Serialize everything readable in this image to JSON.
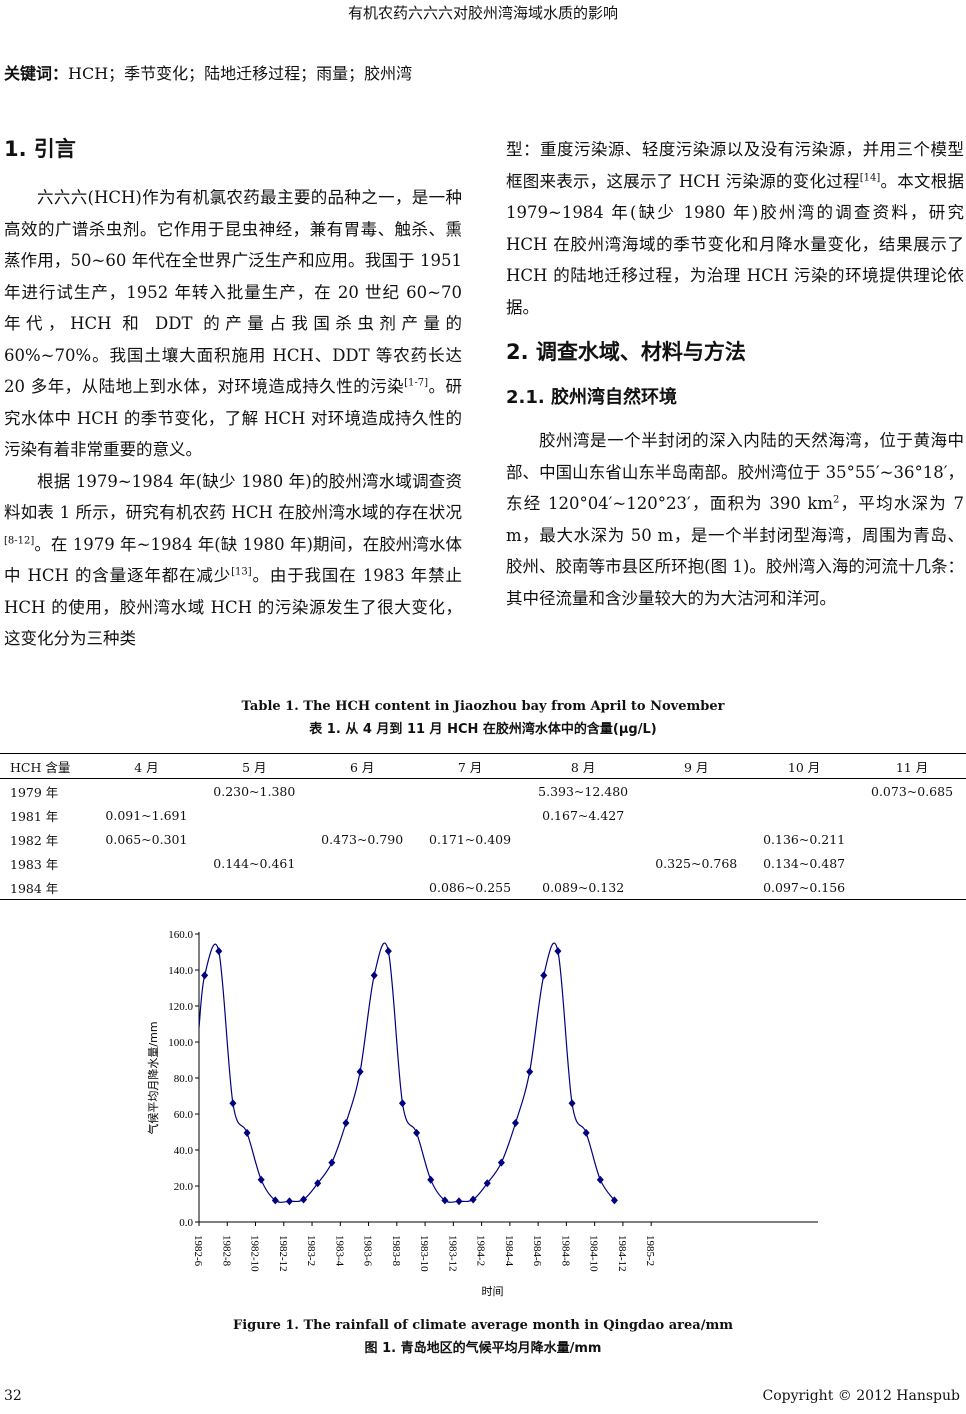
{
  "running_header": "有机农药六六六对胶州湾海域水质的影响",
  "keywords": {
    "label": "关键词：",
    "text": "HCH；季节变化；陆地迁移过程；雨量；胶州湾"
  },
  "sec1": {
    "title": "1.  引言",
    "p1": [
      "六六六(HCH)作为有机氯农药最主要的品种之一，是一种高效的广谱杀虫剂。它作用于昆虫神经，兼有胃毒、触杀、熏蒸作用，50~60 年代在全世界广泛生产和应用。我国于 1951 年进行试生产，1952 年转入批量生产，在 20 世纪 60~70 年代，HCH 和 DDT 的产量占我国杀虫剂产量的 60%~70%。我国土壤大面积施用 HCH、DDT 等农药长达 20 多年，从陆地上到水体，对环境造成持久性的污染",
      "[1-7]",
      "。研究水体中 HCH 的季节变化，了解 HCH 对环境造成持久性的污染有着非常重要的意义。"
    ],
    "p2": [
      "根据 1979~1984 年(缺少 1980 年)的胶州湾水域调查资料如表 1 所示，研究有机农药 HCH 在胶州湾水域的存在状况",
      "[8-12]",
      "。在 1979 年~1984 年(缺 1980 年)期间，在胶州湾水体中 HCH 的含量逐年都在减少",
      "[13]",
      "。由于我国在 1983 年禁止 HCH 的使用，胶州湾水域 HCH 的污染源发生了很大变化，这变化分为三种类"
    ],
    "p3": [
      "型：重度污染源、轻度污染源以及没有污染源，并用三个模型框图来表示，这展示了 HCH 污染源的变化过程",
      "[14]",
      "。本文根据 1979~1984 年(缺少 1980 年)胶州湾的调查资料，研究 HCH 在胶州湾海域的季节变化和月降水量变化，结果展示了 HCH 的陆地迁移过程，为治理 HCH 污染的环境提供理论依据。"
    ]
  },
  "sec2": {
    "title": "2.  调查水域、材料与方法",
    "sub_title": "2.1.  胶州湾自然环境",
    "p1": [
      "胶州湾是一个半封闭的深入内陆的天然海湾，位于黄海中部、中国山东省山东半岛南部。胶州湾位于 35°55′~36°18′，东经 120°04′~120°23′，面积为 390 km",
      "2",
      "，平均水深为 7 m，最大水深为 50 m，是一个半封闭型海湾，周围为青岛、胶州、胶南等市县区所环抱(图 1)。胶州湾入海的河流十几条：其中径流量和含沙量较大的为大沽河和洋河。"
    ]
  },
  "table1": {
    "caption_en": "Table 1. The HCH content in Jiaozhou bay from April to November",
    "caption_zh": "表 1.  从 4 月到 11 月 HCH 在胶州湾水体中的含量(μg/L)",
    "headers": [
      "HCH 含量",
      "4 月",
      "5 月",
      "6 月",
      "7 月",
      "8 月",
      "9 月",
      "10 月",
      "11 月"
    ],
    "rows": [
      [
        "1979 年",
        "",
        "0.230~1.380",
        "",
        "",
        "5.393~12.480",
        "",
        "",
        "0.073~0.685"
      ],
      [
        "1981 年",
        "0.091~1.691",
        "",
        "",
        "",
        "0.167~4.427",
        "",
        "",
        ""
      ],
      [
        "1982 年",
        "0.065~0.301",
        "",
        "0.473~0.790",
        "0.171~0.409",
        "",
        "",
        "0.136~0.211",
        ""
      ],
      [
        "1983 年",
        "",
        "0.144~0.461",
        "",
        "",
        "",
        "0.325~0.768",
        "0.134~0.487",
        ""
      ],
      [
        "1984 年",
        "",
        "",
        "",
        "0.086~0.255",
        "0.089~0.132",
        "",
        "0.097~0.156",
        ""
      ]
    ]
  },
  "chart_data": {
    "type": "line",
    "xlabel": "时间",
    "ylabel": "气候平均月降水量/mm",
    "ylim": [
      0,
      160
    ],
    "yticks": [
      "0.0",
      "20.0",
      "40.0",
      "60.0",
      "80.0",
      "100.0",
      "120.0",
      "140.0",
      "160.0"
    ],
    "xticks": [
      "1982-6",
      "1982-8",
      "1982-10",
      "1982-12",
      "1983-2",
      "1983-4",
      "1983-6",
      "1983-8",
      "1983-10",
      "1983-12",
      "1984-2",
      "1984-4",
      "1984-6",
      "1984-8",
      "1984-10",
      "1984-12",
      "1985-2"
    ],
    "color": "#000080",
    "marker": "diamond",
    "smooth": true,
    "x": [
      "1982-7",
      "1982-8",
      "1982-9",
      "1982-10",
      "1982-11",
      "1982-12",
      "1983-1",
      "1983-2",
      "1983-3",
      "1983-4",
      "1983-5",
      "1983-6",
      "1983-7",
      "1983-8",
      "1983-9",
      "1983-10",
      "1983-11",
      "1983-12",
      "1984-1",
      "1984-2",
      "1984-3",
      "1984-4",
      "1984-5",
      "1984-6",
      "1984-7",
      "1984-8",
      "1984-9",
      "1984-10",
      "1984-11",
      "1984-12"
    ],
    "values": [
      137,
      150.5,
      66,
      49.5,
      23.5,
      12,
      11.5,
      12.5,
      21.5,
      33,
      55,
      83.5,
      137,
      150.5,
      66,
      49.5,
      23.5,
      12,
      11.5,
      12.5,
      21.5,
      33,
      55,
      83.5,
      137,
      150.5,
      66,
      49.5,
      23.5,
      12
    ]
  },
  "figure1": {
    "caption_en": "Figure 1. The rainfall of climate average month in Qingdao area/mm",
    "caption_zh": "图 1.  青岛地区的气候平均月降水量/mm"
  },
  "footer": {
    "page": "32",
    "copyright": "Copyright © 2012 Hanspub"
  }
}
